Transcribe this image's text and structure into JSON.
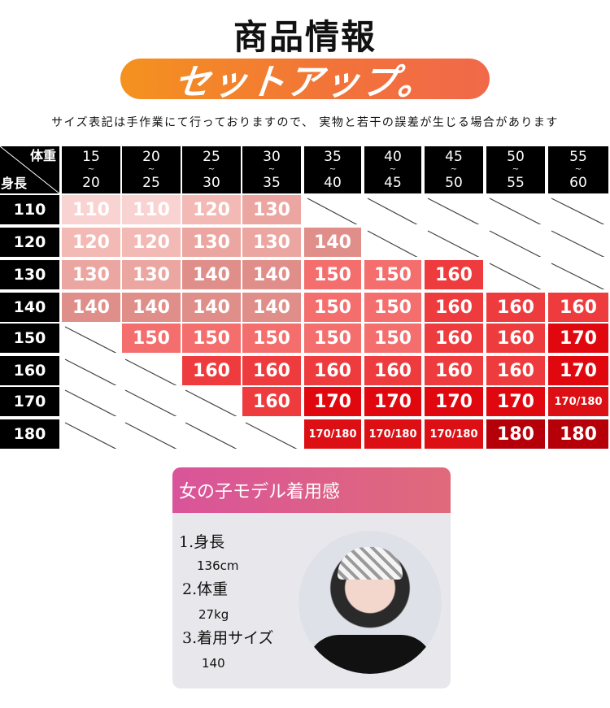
{
  "title": "商品情報",
  "banner": "セットアップ。",
  "note": "サイズ表記は手作業にて行っておりますので、 実物と若干の誤差が生じる場合があります",
  "size_table": {
    "corner_weight_label": "体重",
    "corner_height_label": "身長",
    "tilde": "~",
    "weight_ranges": [
      {
        "from": "15",
        "to": "20"
      },
      {
        "from": "20",
        "to": "25"
      },
      {
        "from": "25",
        "to": "30"
      },
      {
        "from": "30",
        "to": "35"
      },
      {
        "from": "35",
        "to": "40"
      },
      {
        "from": "40",
        "to": "45"
      },
      {
        "from": "45",
        "to": "50"
      },
      {
        "from": "50",
        "to": "55"
      },
      {
        "from": "55",
        "to": "60"
      }
    ],
    "rows": [
      {
        "height": "110",
        "sizes": [
          "110",
          "110",
          "120",
          "130",
          null,
          null,
          null,
          null,
          null
        ]
      },
      {
        "height": "120",
        "sizes": [
          "120",
          "120",
          "130",
          "130",
          "140",
          null,
          null,
          null,
          null
        ]
      },
      {
        "height": "130",
        "sizes": [
          "130",
          "130",
          "140",
          "140",
          "150",
          "150",
          "160",
          null,
          null
        ]
      },
      {
        "height": "140",
        "sizes": [
          "140",
          "140",
          "140",
          "140",
          "150",
          "150",
          "160",
          "160",
          "160"
        ]
      },
      {
        "height": "150",
        "sizes": [
          null,
          "150",
          "150",
          "150",
          "150",
          "150",
          "160",
          "160",
          "170"
        ]
      },
      {
        "height": "160",
        "sizes": [
          null,
          null,
          "160",
          "160",
          "160",
          "160",
          "160",
          "160",
          "170"
        ]
      },
      {
        "height": "170",
        "sizes": [
          null,
          null,
          null,
          "160",
          "170",
          "170",
          "170",
          "170",
          "170/180"
        ]
      },
      {
        "height": "180",
        "sizes": [
          null,
          null,
          null,
          null,
          "170/180",
          "170/180",
          "170/180",
          "180",
          "180"
        ]
      }
    ],
    "size_colors": {
      "110": "#f8d3d1",
      "120": "#f2b9b5",
      "130": "#eca6a1",
      "140": "#e08e89",
      "150": "#f36e6d",
      "160": "#ee3b3d",
      "170": "#e0080e",
      "170/180": "#dc0f15",
      "180": "#b50009"
    }
  },
  "model": {
    "heading": "女の子モデル着用感",
    "items": [
      {
        "label": "1.身長",
        "value": "136cm"
      },
      {
        "label": "2.体重",
        "value": "27kg"
      },
      {
        "label": "3.着用サイズ",
        "value": "140"
      }
    ]
  }
}
